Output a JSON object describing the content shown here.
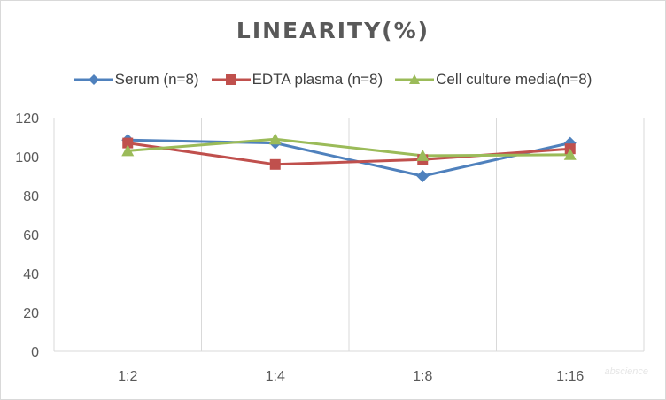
{
  "chart_data": {
    "type": "line",
    "title": "LINEARITY(%)",
    "xlabel": "",
    "ylabel": "",
    "categories": [
      "1:2",
      "1:4",
      "1:8",
      "1:16"
    ],
    "ylim": [
      0,
      120
    ],
    "yticks": [
      0,
      20,
      40,
      60,
      80,
      100,
      120
    ],
    "grid": "vertical",
    "legend_position": "top",
    "series": [
      {
        "name": "Serum (n=8)",
        "color": "#4f81bd",
        "marker": "diamond",
        "values": [
          108.5,
          107,
          90,
          107
        ]
      },
      {
        "name": "EDTA plasma (n=8)",
        "color": "#c0504d",
        "marker": "square",
        "values": [
          107,
          96,
          98.5,
          104
        ]
      },
      {
        "name": "Cell culture media(n=8)",
        "color": "#9bbb59",
        "marker": "triangle",
        "values": [
          103,
          109,
          100.5,
          101
        ]
      }
    ]
  },
  "watermark": "abscience"
}
